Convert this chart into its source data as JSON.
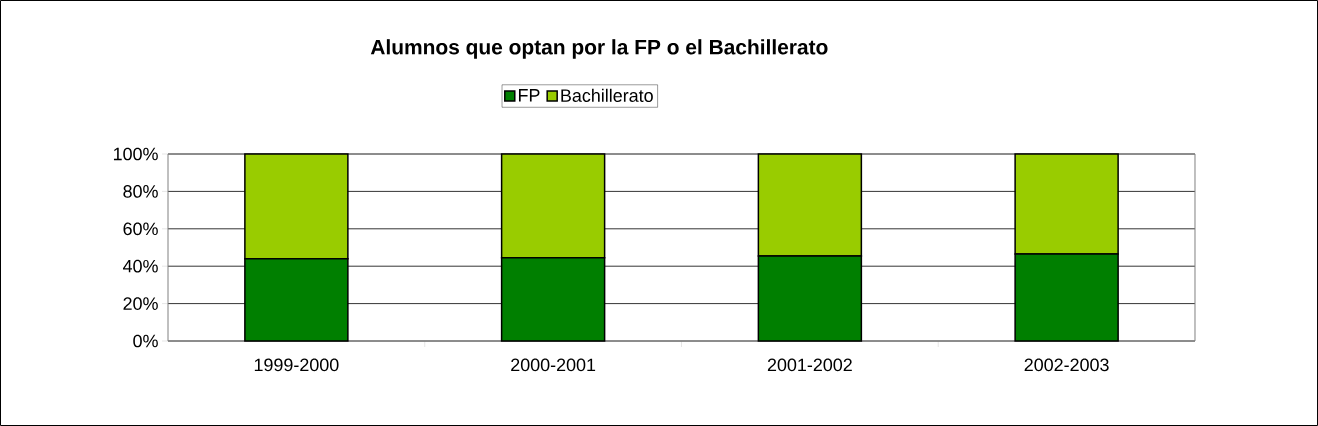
{
  "chart_data": {
    "type": "bar",
    "title": "Alumnos que optan por la FP o el Bachillerato",
    "categories": [
      "1999-2000",
      "2000-2001",
      "2001-2002",
      "2002-2003"
    ],
    "series": [
      {
        "name": "FP",
        "color": "#007f00",
        "values": [
          44,
          44.5,
          45.5,
          46.5
        ]
      },
      {
        "name": "Bachillerato",
        "color": "#99cc00",
        "values": [
          56,
          55.5,
          54.5,
          53.5
        ]
      }
    ],
    "stacked": true,
    "ylim": [
      0,
      100
    ],
    "yticks": [
      {
        "value": 0,
        "label": "0%"
      },
      {
        "value": 20,
        "label": "20%"
      },
      {
        "value": 40,
        "label": "40%"
      },
      {
        "value": 60,
        "label": "60%"
      },
      {
        "value": 80,
        "label": "80%"
      },
      {
        "value": 100,
        "label": "100%"
      }
    ],
    "grid": "y",
    "legend": "top"
  }
}
